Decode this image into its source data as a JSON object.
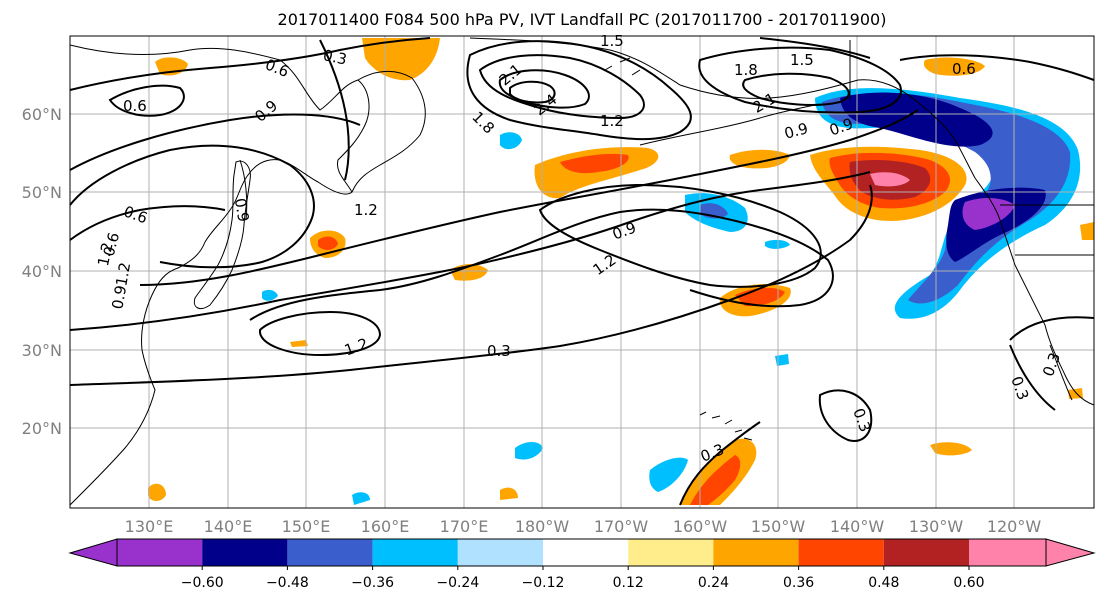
{
  "title": "2017011400 F084 500 hPa PV, IVT Landfall PC (2017011700 - 2017011900)",
  "lat_labels": [
    "60°N",
    "50°N",
    "40°N",
    "30°N",
    "20°N"
  ],
  "lon_labels": [
    "130°E",
    "140°E",
    "150°E",
    "160°E",
    "170°E",
    "180°W",
    "170°W",
    "160°W",
    "150°W",
    "140°W",
    "130°W",
    "120°W"
  ],
  "colorbar": {
    "tick_labels": [
      "−0.60",
      "−0.48",
      "−0.36",
      "−0.24",
      "−0.12",
      "0.12",
      "0.24",
      "0.36",
      "0.48",
      "0.60"
    ],
    "colors": [
      "#9932cc",
      "#00008b",
      "#3a5fcd",
      "#00bfff",
      "#b0e2ff",
      "#ffffff",
      "#ffec8b",
      "#ffa500",
      "#ff4500",
      "#b22222",
      "#ff82ab"
    ]
  },
  "contour_labels": [
    "0.3",
    "0.6",
    "0.6",
    "0.9",
    "1.5",
    "1.8",
    "1.5",
    "0.6",
    "2.1",
    "2.4",
    "1.8",
    "2.1",
    "1.2",
    "0.9",
    "0.9",
    "1.2",
    "0.6",
    "0.9",
    "1.2",
    "0.9",
    "1.2",
    "1.2",
    "0.3",
    "0.3",
    "0.3",
    "0.3",
    "0.3",
    "0.6",
    "0.9",
    "1.2"
  ]
}
